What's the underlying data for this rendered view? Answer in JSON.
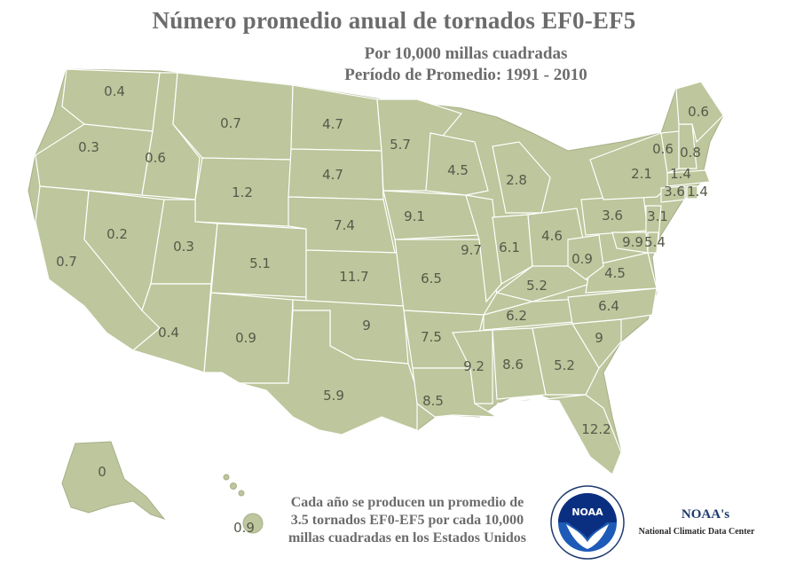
{
  "header": {
    "title": "Número promedio anual de tornados EF0-EF5",
    "subtitle1": "Por 10,000 millas cuadradas",
    "subtitle2": "Período de Promedio: 1991 - 2010"
  },
  "states": {
    "WA": "0.4",
    "OR": "0.3",
    "CA": "0.7",
    "ID": "0.6",
    "NV": "0.2",
    "MT": "0.7",
    "WY": "1.2",
    "UT": "0.3",
    "AZ": "0.4",
    "CO": "5.1",
    "NM": "0.9",
    "ND": "4.7",
    "SD": "4.7",
    "NE": "7.4",
    "KS": "11.7",
    "OK": "9",
    "TX": "5.9",
    "MN": "5.7",
    "IA": "9.1",
    "MO": "6.5",
    "AR": "7.5",
    "LA": "8.5",
    "WI": "4.5",
    "IL": "9.7",
    "MS": "9.2",
    "MI": "2.8",
    "IN": "6.1",
    "KY": "5.2",
    "TN": "6.2",
    "AL": "8.6",
    "OH": "4.6",
    "GA": "5.2",
    "FL": "12.2",
    "SC": "9",
    "NC": "6.4",
    "VA": "4.5",
    "WV": "0.9",
    "PA": "3.6",
    "NY": "2.1",
    "VT": "0.6",
    "NH": "0.8",
    "ME": "0.6",
    "MA": "1.4",
    "CT": "3.6",
    "RI": "1.4",
    "NJ": "3.1",
    "DE": "5.4",
    "MD": "9.9",
    "AK": "0",
    "HI": "0.9"
  },
  "footnote": {
    "line1": "Cada año se producen un promedio de",
    "line2": "3.5 tornados EF0-EF5 por cada 10,000",
    "line3": "millas cuadradas en los Estados Unidos"
  },
  "logo": {
    "text": "NOAA",
    "icon": "noaa-logo-icon"
  },
  "credit": {
    "org": "NOAA's",
    "center": "National Climatic Data Center"
  },
  "colors": {
    "land": "#bdc69c",
    "border": "#ffffff",
    "label": "#555a4a",
    "heading": "#6c6c6c",
    "noaa_blue": "#1e5bb8"
  }
}
